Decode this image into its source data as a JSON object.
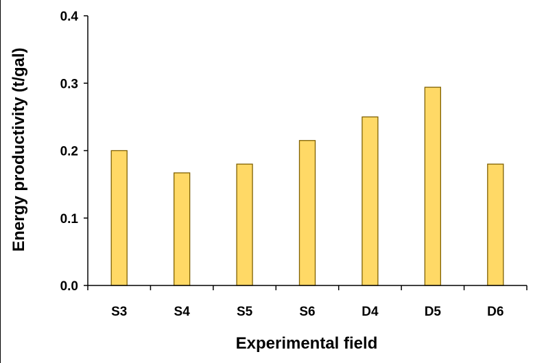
{
  "chart_data": {
    "type": "bar",
    "title": "",
    "xlabel": "Experimental field",
    "ylabel": "Energy productivity (t/gal)",
    "categories": [
      "S3",
      "S4",
      "S5",
      "S6",
      "D4",
      "D5",
      "D6"
    ],
    "values": [
      0.2,
      0.167,
      0.18,
      0.215,
      0.25,
      0.294,
      0.18
    ],
    "ylim": [
      0.0,
      0.4
    ],
    "yticks": [
      "0.0",
      "0.1",
      "0.2",
      "0.3",
      "0.4"
    ],
    "grid": false,
    "legend": "none",
    "bar_color": "#FFD966",
    "bar_edge_color": "#7F6000",
    "axis_color": "#000000"
  }
}
